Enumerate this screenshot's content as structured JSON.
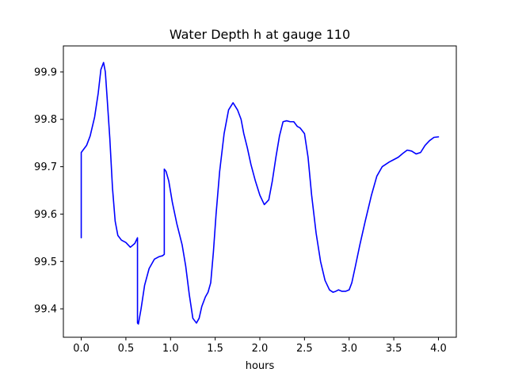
{
  "chart_data": {
    "type": "line",
    "title": "Water Depth h at gauge 110",
    "xlabel": "hours",
    "ylabel": "",
    "xlim": [
      -0.2,
      4.2
    ],
    "ylim": [
      99.34,
      99.955
    ],
    "xticks": [
      0.0,
      0.5,
      1.0,
      1.5,
      2.0,
      2.5,
      3.0,
      3.5,
      4.0
    ],
    "xtick_labels": [
      "0.0",
      "0.5",
      "1.0",
      "1.5",
      "2.0",
      "2.5",
      "3.0",
      "3.5",
      "4.0"
    ],
    "yticks": [
      99.4,
      99.5,
      99.6,
      99.7,
      99.8,
      99.9
    ],
    "ytick_labels": [
      "99.4",
      "99.5",
      "99.6",
      "99.7",
      "99.8",
      "99.9"
    ],
    "grid": false,
    "series": [
      {
        "color": "#0000ff",
        "x": [
          0.0,
          0.0,
          0.02,
          0.06,
          0.1,
          0.15,
          0.19,
          0.22,
          0.25,
          0.27,
          0.29,
          0.32,
          0.35,
          0.38,
          0.41,
          0.45,
          0.5,
          0.55,
          0.6,
          0.63,
          0.63,
          0.64,
          0.67,
          0.71,
          0.76,
          0.82,
          0.87,
          0.91,
          0.93,
          0.93,
          0.95,
          0.98,
          1.02,
          1.07,
          1.13,
          1.17,
          1.21,
          1.25,
          1.29,
          1.32,
          1.35,
          1.39,
          1.42,
          1.45,
          1.48,
          1.51,
          1.55,
          1.6,
          1.65,
          1.7,
          1.75,
          1.79,
          1.82,
          1.86,
          1.9,
          1.95,
          2.0,
          2.05,
          2.1,
          2.14,
          2.18,
          2.22,
          2.26,
          2.3,
          2.34,
          2.38,
          2.42,
          2.45,
          2.5,
          2.54,
          2.58,
          2.63,
          2.68,
          2.73,
          2.78,
          2.82,
          2.85,
          2.88,
          2.92,
          2.96,
          3.0,
          3.03,
          3.07,
          3.12,
          3.18,
          3.25,
          3.31,
          3.37,
          3.41,
          3.45,
          3.5,
          3.55,
          3.6,
          3.65,
          3.7,
          3.75,
          3.8,
          3.85,
          3.9,
          3.95,
          4.0
        ],
        "y": [
          99.55,
          99.73,
          99.735,
          99.745,
          99.765,
          99.805,
          99.855,
          99.905,
          99.92,
          99.9,
          99.845,
          99.76,
          99.655,
          99.585,
          99.555,
          99.545,
          99.54,
          99.53,
          99.538,
          99.55,
          99.37,
          99.368,
          99.4,
          99.45,
          99.485,
          99.505,
          99.51,
          99.512,
          99.515,
          99.695,
          99.69,
          99.67,
          99.625,
          99.58,
          99.535,
          99.49,
          99.43,
          99.38,
          99.37,
          99.38,
          99.405,
          99.425,
          99.435,
          99.455,
          99.52,
          99.6,
          99.69,
          99.77,
          99.82,
          99.835,
          99.82,
          99.8,
          99.77,
          99.74,
          99.705,
          99.67,
          99.64,
          99.62,
          99.63,
          99.67,
          99.72,
          99.765,
          99.795,
          99.797,
          99.795,
          99.795,
          99.785,
          99.782,
          99.77,
          99.72,
          99.64,
          99.56,
          99.5,
          99.46,
          99.44,
          99.435,
          99.437,
          99.44,
          99.437,
          99.437,
          99.44,
          99.455,
          99.49,
          99.535,
          99.585,
          99.64,
          99.68,
          99.7,
          99.705,
          99.71,
          99.715,
          99.72,
          99.728,
          99.735,
          99.733,
          99.727,
          99.73,
          99.745,
          99.755,
          99.762,
          99.763
        ]
      }
    ]
  }
}
